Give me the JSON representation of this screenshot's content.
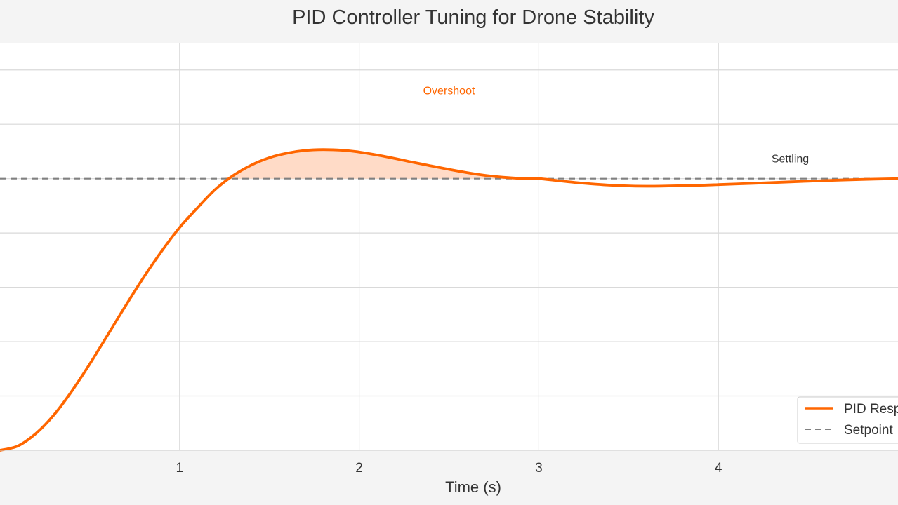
{
  "chart_data": {
    "type": "line",
    "title": "PID Controller Tuning for Drone Stability",
    "xlabel": "Time (s)",
    "ylabel": "",
    "xlim": [
      0,
      5
    ],
    "ylim": [
      0,
      1.5
    ],
    "x_ticks": [
      1,
      2,
      3,
      4
    ],
    "x_tick_labels": [
      "1",
      "2",
      "3",
      "4"
    ],
    "y_grid": [
      0.2,
      0.4,
      0.6,
      0.8,
      1.0,
      1.2,
      1.4
    ],
    "grid": true,
    "series": [
      {
        "name": "PID Response",
        "color": "#ff6600",
        "x": [
          0,
          0.1,
          0.2,
          0.3,
          0.4,
          0.5,
          0.6,
          0.7,
          0.8,
          0.9,
          1.0,
          1.1,
          1.2,
          1.3,
          1.4,
          1.5,
          1.6,
          1.7,
          1.8,
          1.9,
          2.0,
          2.1,
          2.2,
          2.3,
          2.4,
          2.5,
          2.6,
          2.7,
          2.8,
          2.9,
          3.0,
          3.2,
          3.4,
          3.6,
          3.8,
          4.0,
          4.2,
          4.4,
          4.6,
          4.8,
          5.0
        ],
        "y": [
          0,
          0.016,
          0.062,
          0.13,
          0.218,
          0.318,
          0.425,
          0.533,
          0.637,
          0.733,
          0.82,
          0.893,
          0.961,
          1.012,
          1.05,
          1.077,
          1.094,
          1.104,
          1.107,
          1.105,
          1.098,
          1.087,
          1.074,
          1.06,
          1.047,
          1.034,
          1.022,
          1.012,
          1.005,
          1.001,
          1.0,
          0.986,
          0.976,
          0.972,
          0.974,
          0.978,
          0.983,
          0.988,
          0.993,
          0.997,
          1.0
        ]
      },
      {
        "name": "Setpoint",
        "color": "#808080",
        "style": "dashed",
        "x": [
          0,
          5
        ],
        "y": [
          1.0,
          1.0
        ]
      }
    ],
    "fill_between": {
      "series": "PID Response",
      "baseline": 1.0,
      "x_range": [
        1.22,
        3.0
      ],
      "color": "#ffd9c4"
    },
    "annotations": [
      {
        "text": "Overshoot",
        "x": 2.5,
        "y": 1.31,
        "color": "#ff6600"
      },
      {
        "text": "Settling",
        "x": 4.4,
        "y": 1.06,
        "color": "#333333"
      }
    ],
    "legend": {
      "position": "lower-right",
      "entries": [
        "PID Response",
        "Setpoint"
      ]
    }
  }
}
